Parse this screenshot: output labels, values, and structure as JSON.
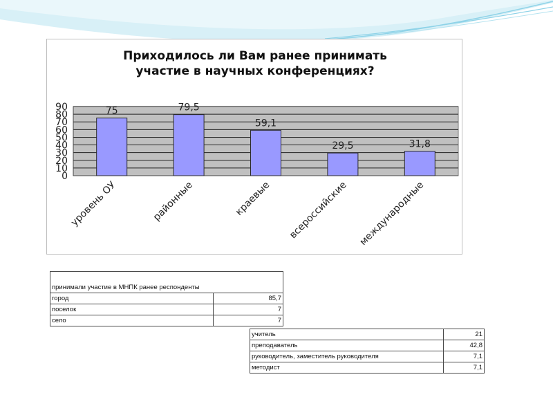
{
  "chart_data": {
    "type": "bar",
    "title": "Приходилось ли Вам ранее принимать участие в научных конференциях?",
    "title_lines": [
      "Приходилось ли Вам ранее принимать",
      "участие в научных конференциях?"
    ],
    "categories": [
      "уровень ОУ",
      "районные",
      "краевые",
      "всероссийские",
      "международные"
    ],
    "values": [
      75,
      79.5,
      59.1,
      29.5,
      31.8
    ],
    "value_labels": [
      "75",
      "79,5",
      "59,1",
      "29,5",
      "31,8"
    ],
    "yticks": [
      "0",
      "10",
      "20",
      "30",
      "40",
      "50",
      "60",
      "70",
      "80",
      "90"
    ],
    "ylim": [
      0,
      90
    ],
    "grid": true,
    "colors": {
      "bar": "#9999ff",
      "bar_stroke": "#2b2b2b",
      "plot_bg": "#c0c0c0",
      "grid": "#222222"
    }
  },
  "table_settlement": {
    "header": "принимали участие в МНПК ранее респонденты",
    "rows": [
      {
        "label": "город",
        "value": "85,7"
      },
      {
        "label": "поселок",
        "value": "7"
      },
      {
        "label": "село",
        "value": "7"
      }
    ]
  },
  "table_role": {
    "rows": [
      {
        "label": "учитель",
        "value": "21"
      },
      {
        "label": "преподаватель",
        "value": "42,8"
      },
      {
        "label": "руководитель, заместитель руководителя",
        "value": "7,1"
      },
      {
        "label": "методист",
        "value": "7,1"
      }
    ]
  },
  "decor_colors": {
    "swoosh_dark": "#8fd3e8",
    "swoosh_light": "#d8f0f7"
  }
}
